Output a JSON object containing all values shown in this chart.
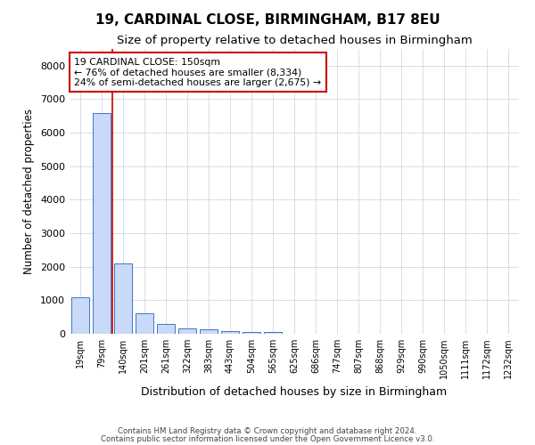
{
  "title1": "19, CARDINAL CLOSE, BIRMINGHAM, B17 8EU",
  "title2": "Size of property relative to detached houses in Birmingham",
  "xlabel": "Distribution of detached houses by size in Birmingham",
  "ylabel": "Number of detached properties",
  "categories": [
    "19sqm",
    "79sqm",
    "140sqm",
    "201sqm",
    "261sqm",
    "322sqm",
    "383sqm",
    "443sqm",
    "504sqm",
    "565sqm",
    "625sqm",
    "686sqm",
    "747sqm",
    "807sqm",
    "868sqm",
    "929sqm",
    "990sqm",
    "1050sqm",
    "1111sqm",
    "1172sqm",
    "1232sqm"
  ],
  "values": [
    1100,
    6600,
    2100,
    600,
    300,
    150,
    120,
    90,
    60,
    50,
    0,
    0,
    0,
    0,
    0,
    0,
    0,
    0,
    0,
    0,
    0
  ],
  "bar_color": "#c9daf8",
  "bar_edge_color": "#4472c4",
  "vline_x": 1.5,
  "vline_color": "#cc0000",
  "annotation_text": "19 CARDINAL CLOSE: 150sqm\n← 76% of detached houses are smaller (8,334)\n24% of semi-detached houses are larger (2,675) →",
  "annotation_box_color": "#ffffff",
  "annotation_box_edge": "#cc0000",
  "ylim": [
    0,
    8500
  ],
  "yticks": [
    0,
    1000,
    2000,
    3000,
    4000,
    5000,
    6000,
    7000,
    8000
  ],
  "footer1": "Contains HM Land Registry data © Crown copyright and database right 2024.",
  "footer2": "Contains public sector information licensed under the Open Government Licence v3.0.",
  "grid_color": "#d0d8e8"
}
